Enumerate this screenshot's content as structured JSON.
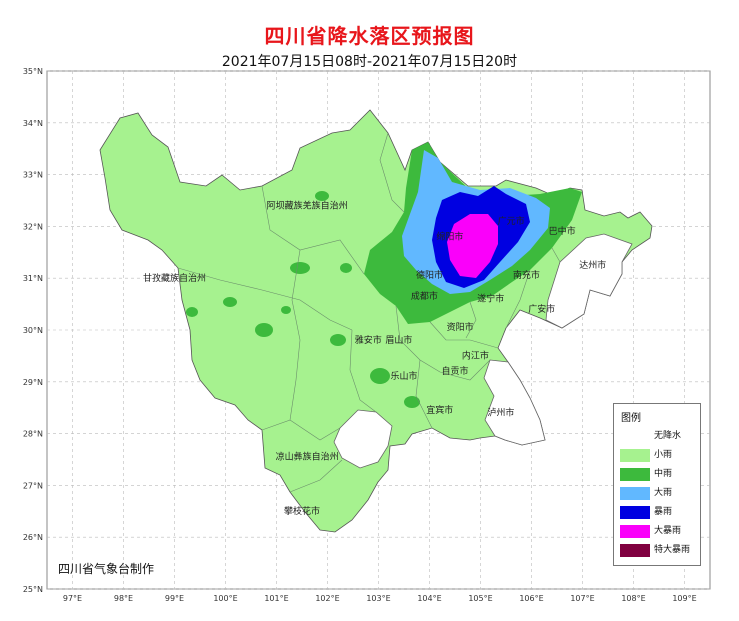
{
  "title": "四川省降水落区预报图",
  "subtitle": "2021年07月15日08时-2021年07月15日20时",
  "credit": "四川省气象台制作",
  "axes": {
    "lat_labels": [
      "35°N",
      "34°N",
      "33°N",
      "32°N",
      "31°N",
      "30°N",
      "29°N",
      "28°N",
      "27°N",
      "26°N",
      "25°N"
    ],
    "lon_labels": [
      "97°E",
      "98°E",
      "99°E",
      "100°E",
      "101°E",
      "102°E",
      "103°E",
      "104°E",
      "105°E",
      "106°E",
      "107°E",
      "108°E",
      "109°E"
    ]
  },
  "legend": {
    "title": "图例",
    "items": [
      {
        "label": "无降水",
        "color": "#ffffff"
      },
      {
        "label": "小雨",
        "color": "#a6f28f"
      },
      {
        "label": "中雨",
        "color": "#3dba3d"
      },
      {
        "label": "大雨",
        "color": "#61b8ff"
      },
      {
        "label": "暴雨",
        "color": "#0000e1"
      },
      {
        "label": "大暴雨",
        "color": "#fa00fa"
      },
      {
        "label": "特大暴雨",
        "color": "#800040"
      }
    ]
  },
  "cities": [
    {
      "name": "阿坝藏族羌族自治州",
      "lon": 101.6,
      "lat": 32.35
    },
    {
      "name": "甘孜藏族自治州",
      "lon": 99.0,
      "lat": 30.95
    },
    {
      "name": "凉山彝族自治州",
      "lon": 101.6,
      "lat": 27.5
    },
    {
      "name": "广元市",
      "lon": 105.6,
      "lat": 32.05
    },
    {
      "name": "巴中市",
      "lon": 106.6,
      "lat": 31.85
    },
    {
      "name": "绵阳市",
      "lon": 104.4,
      "lat": 31.75
    },
    {
      "name": "达州市",
      "lon": 107.2,
      "lat": 31.2
    },
    {
      "name": "南充市",
      "lon": 105.9,
      "lat": 31.0
    },
    {
      "name": "德阳市",
      "lon": 104.0,
      "lat": 31.0
    },
    {
      "name": "成都市",
      "lon": 103.9,
      "lat": 30.6
    },
    {
      "name": "遂宁市",
      "lon": 105.2,
      "lat": 30.55
    },
    {
      "name": "广安市",
      "lon": 106.2,
      "lat": 30.35
    },
    {
      "name": "资阳市",
      "lon": 104.6,
      "lat": 30.0
    },
    {
      "name": "雅安市",
      "lon": 102.8,
      "lat": 29.75
    },
    {
      "name": "眉山市",
      "lon": 103.4,
      "lat": 29.75
    },
    {
      "name": "内江市",
      "lon": 104.9,
      "lat": 29.45
    },
    {
      "name": "乐山市",
      "lon": 103.5,
      "lat": 29.05
    },
    {
      "name": "自贡市",
      "lon": 104.5,
      "lat": 29.15
    },
    {
      "name": "宜宾市",
      "lon": 104.2,
      "lat": 28.4
    },
    {
      "name": "泸州市",
      "lon": 105.4,
      "lat": 28.35
    },
    {
      "name": "攀枝花市",
      "lon": 101.5,
      "lat": 26.45
    }
  ]
}
